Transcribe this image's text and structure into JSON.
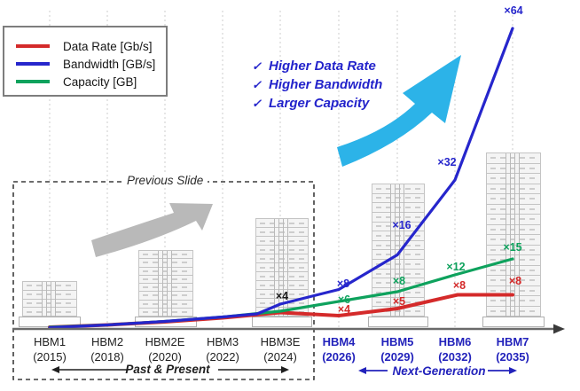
{
  "legend": {
    "items": [
      {
        "label": "Data Rate [Gb/s]",
        "color": "#d42a2a"
      },
      {
        "label": "Bandwidth [GB/s]",
        "color": "#2626cc"
      },
      {
        "label": "Capacity [GB]",
        "color": "#0ea25d"
      }
    ]
  },
  "bullets": {
    "check": "✓",
    "items": [
      "Higher Data Rate",
      "Higher Bandwidth",
      "Larger Capacity"
    ]
  },
  "annotations": {
    "previous_slide": "Previous Slide",
    "past_present": "Past & Present",
    "next_generation": "Next-Generation"
  },
  "x_axis": {
    "generations": [
      {
        "name": "HBM1",
        "year": "(2015)",
        "era": "past"
      },
      {
        "name": "HBM2",
        "year": "(2018)",
        "era": "past"
      },
      {
        "name": "HBM2E",
        "year": "(2020)",
        "era": "past"
      },
      {
        "name": "HBM3",
        "year": "(2022)",
        "era": "past"
      },
      {
        "name": "HBM3E",
        "year": "(2024)",
        "era": "past"
      },
      {
        "name": "HBM4",
        "year": "(2026)",
        "era": "next"
      },
      {
        "name": "HBM5",
        "year": "(2029)",
        "era": "next"
      },
      {
        "name": "HBM6",
        "year": "(2032)",
        "era": "next"
      },
      {
        "name": "HBM7",
        "year": "(2035)",
        "era": "next"
      }
    ]
  },
  "chart_data": {
    "type": "line",
    "title": "",
    "xlabel": "",
    "ylabel": "",
    "grid": "vertical-dotted",
    "legend_position": "top-left",
    "categories": [
      "HBM1 (2015)",
      "HBM2 (2018)",
      "HBM2E (2020)",
      "HBM3 (2022)",
      "HBM3E (2024)",
      "HBM4 (2026)",
      "HBM5 (2029)",
      "HBM6 (2032)",
      "HBM7 (2035)"
    ],
    "baseline_label": {
      "category": "HBM3E",
      "value": "×4"
    },
    "series": [
      {
        "name": "Data Rate [Gb/s]",
        "color": "#d42a2a",
        "growth_labels": {
          "HBM4": "×4",
          "HBM5": "×5",
          "HBM6": "×8",
          "HBM7": "×8"
        }
      },
      {
        "name": "Bandwidth [GB/s]",
        "color": "#2626cc",
        "growth_labels": {
          "HBM4": "×8",
          "HBM5": "×16",
          "HBM6": "×32",
          "HBM7": "×64"
        }
      },
      {
        "name": "Capacity [GB]",
        "color": "#0ea25d",
        "growth_labels": {
          "HBM4": "×6",
          "HBM5": "×8",
          "HBM6": "×12",
          "HBM7": "×15"
        }
      }
    ]
  },
  "colors": {
    "next_gen_blue": "#2222bb",
    "bullet_blue": "#2323cb",
    "baseline_black": "#1a1a1a",
    "cyan_arrow": "#2cb3e8",
    "gray_arrow": "#b9b9b9",
    "grid": "#cdcdcd",
    "axis": "#6a6a6a",
    "axis_head": "#3a3a3a",
    "past_text": "#1f1f1f"
  }
}
